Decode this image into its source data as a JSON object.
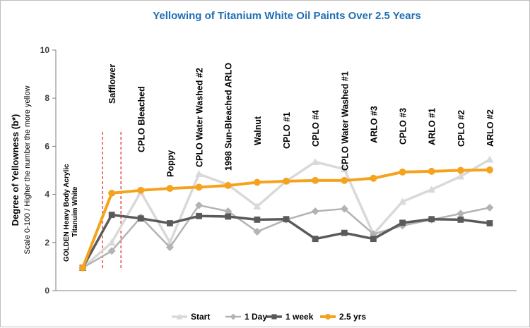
{
  "chart_data": {
    "type": "line",
    "title": "Yellowing of Titanium White Oil Paints Over 2.5 Years",
    "ylabel": "Degree of Yellowness (b*)",
    "ylabel_sub": "Scale 0-100 / Higher the number the more yellow",
    "xlabel": "",
    "ylim": [
      0,
      10
    ],
    "yticks": [
      "0",
      "2",
      "4",
      "6",
      "8",
      "10"
    ],
    "categories": [
      "GOLDEN Heavy Body Acrylic Titanuim White",
      "Safflower",
      "CPLO Bleached",
      "Poppy",
      "CPLO Water Washed #2",
      "1998 Sun-Bleached ARLO",
      "Walnut",
      "CPLO #1",
      "CPLO #4",
      "CPLO Water Washed #1",
      "ARLO #3",
      "CPLO #3",
      "ARLO #1",
      "CPLO #2",
      "ARLO #2"
    ],
    "series": [
      {
        "name": "Start",
        "color": "#d9d9d9",
        "marker": "triangle",
        "values": [
          0.95,
          2.0,
          4.1,
          2.0,
          4.85,
          4.4,
          3.5,
          4.55,
          5.35,
          5.05,
          2.35,
          3.7,
          4.2,
          4.75,
          5.45
        ]
      },
      {
        "name": "1 Day",
        "color": "#b3b3b3",
        "marker": "diamond",
        "values": [
          0.95,
          1.65,
          3.05,
          1.8,
          3.55,
          3.3,
          2.45,
          2.95,
          3.3,
          3.4,
          2.35,
          2.7,
          2.95,
          3.2,
          3.45
        ]
      },
      {
        "name": "1 week",
        "color": "#5a5a5a",
        "marker": "square",
        "values": [
          0.95,
          3.15,
          3.0,
          2.8,
          3.1,
          3.08,
          2.95,
          2.97,
          2.15,
          2.4,
          2.15,
          2.82,
          2.97,
          2.95,
          2.8
        ]
      },
      {
        "name": "2.5 yrs",
        "color": "#f5a31e",
        "marker": "circle",
        "values": [
          0.95,
          4.05,
          4.17,
          4.25,
          4.3,
          4.37,
          4.5,
          4.55,
          4.58,
          4.58,
          4.67,
          4.93,
          4.96,
          5.0,
          5.02
        ]
      }
    ],
    "grid": false,
    "legend_position": "bottom",
    "annotation": "dashed red lines around Safflower"
  }
}
